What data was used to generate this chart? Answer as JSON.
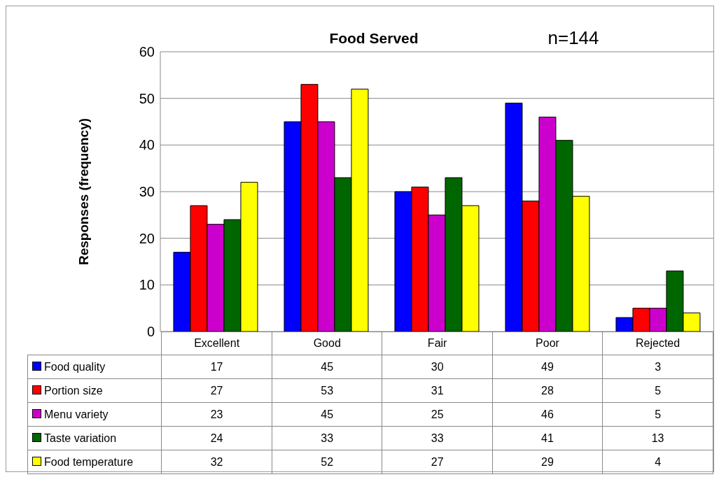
{
  "chart_data": {
    "type": "bar",
    "title": "Food Served",
    "annotations": [
      "n=144"
    ],
    "ylabel": "Responses (frequency)",
    "categories": [
      "Excellent",
      "Good",
      "Fair",
      "Poor",
      "Rejected"
    ],
    "series": [
      {
        "name": "Food quality",
        "color": "#0000ff",
        "values": [
          17,
          45,
          30,
          49,
          3
        ]
      },
      {
        "name": "Portion size",
        "color": "#ff0000",
        "values": [
          27,
          53,
          31,
          28,
          5
        ]
      },
      {
        "name": "Menu variety",
        "color": "#cc00cc",
        "values": [
          23,
          45,
          25,
          46,
          5
        ]
      },
      {
        "name": "Taste variation",
        "color": "#006600",
        "values": [
          24,
          33,
          33,
          41,
          13
        ]
      },
      {
        "name": "Food temperature",
        "color": "#ffff00",
        "values": [
          32,
          52,
          27,
          29,
          4
        ]
      }
    ],
    "ylim": [
      0,
      60
    ],
    "yticks": [
      0,
      10,
      20,
      30,
      40,
      50,
      60
    ],
    "grid": "y",
    "legend": "bottom",
    "data_labels": true
  }
}
